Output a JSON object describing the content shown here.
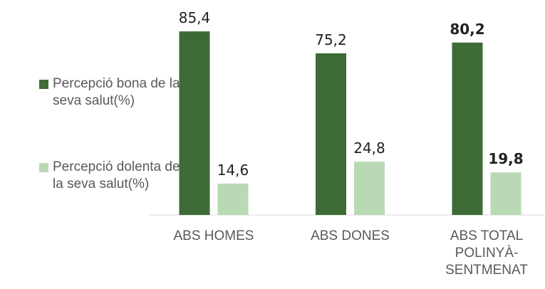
{
  "chart_data": {
    "type": "bar",
    "categories": [
      "ABS HOMES",
      "ABS DONES",
      "ABS TOTAL POLINYÀ-SENTMENAT"
    ],
    "series": [
      {
        "name": "Percepció bona de la seva salut(%)",
        "color": "#3e6b35",
        "values": [
          85.4,
          75.2,
          80.2
        ],
        "value_labels": [
          "85,4",
          "75,2",
          "80,2"
        ]
      },
      {
        "name": "Percepció dolenta de la seva salut(%)",
        "color": "#b9d9b4",
        "values": [
          14.6,
          24.8,
          19.8
        ],
        "value_labels": [
          "14,6",
          "24,8",
          "19,8"
        ]
      }
    ]
  }
}
